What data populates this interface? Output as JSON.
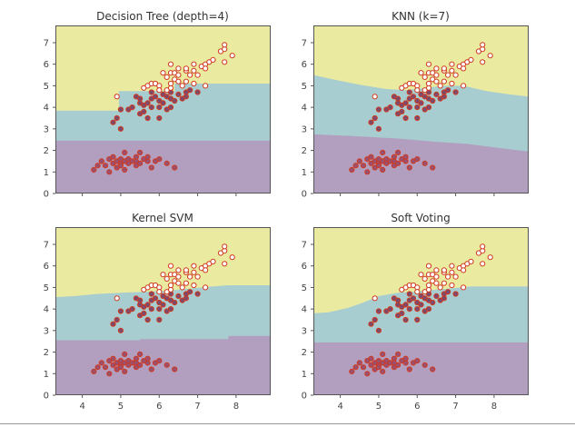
{
  "chart_data": [
    {
      "type": "scatter",
      "title": "Decision Tree (depth=4)",
      "xlim": [
        3.3,
        8.9
      ],
      "ylim": [
        0,
        7.8
      ],
      "xticks": [
        4,
        5,
        6,
        7,
        8
      ],
      "yticks": [
        0,
        1,
        2,
        3,
        4,
        5,
        6,
        7
      ],
      "show_x_tick_labels": false,
      "region_colors": [
        "#b29fc0",
        "#a8cdd0",
        "#eaeba0"
      ],
      "boundary_lower": [
        [
          3.3,
          2.45
        ],
        [
          8.9,
          2.45
        ]
      ],
      "boundary_upper": [
        [
          3.3,
          3.85
        ],
        [
          4.95,
          3.85
        ],
        [
          4.95,
          4.75
        ],
        [
          6.4,
          4.75
        ],
        [
          6.4,
          5.1
        ],
        [
          8.9,
          5.1
        ]
      ]
    },
    {
      "type": "scatter",
      "title": "KNN (k=7)",
      "xlim": [
        3.3,
        8.9
      ],
      "ylim": [
        0,
        7.8
      ],
      "xticks": [
        4,
        5,
        6,
        7,
        8
      ],
      "yticks": [
        0,
        1,
        2,
        3,
        4,
        5,
        6,
        7
      ],
      "show_x_tick_labels": false,
      "region_colors": [
        "#b29fc0",
        "#a8cdd0",
        "#eaeba0"
      ],
      "boundary_lower": [
        [
          3.3,
          2.75
        ],
        [
          4.5,
          2.65
        ],
        [
          5.5,
          2.55
        ],
        [
          6.5,
          2.4
        ],
        [
          7.3,
          2.3
        ],
        [
          8.2,
          2.1
        ],
        [
          8.9,
          1.95
        ]
      ],
      "boundary_upper": [
        [
          3.3,
          5.5
        ],
        [
          3.8,
          5.3
        ],
        [
          4.5,
          5.05
        ],
        [
          5.2,
          4.85
        ],
        [
          5.7,
          4.8
        ],
        [
          6.2,
          4.9
        ],
        [
          6.7,
          5.0
        ],
        [
          7.2,
          5.0
        ],
        [
          7.8,
          4.75
        ],
        [
          8.4,
          4.6
        ],
        [
          8.9,
          4.5
        ]
      ]
    },
    {
      "type": "scatter",
      "title": "Kernel SVM",
      "xlim": [
        3.3,
        8.9
      ],
      "ylim": [
        0,
        7.8
      ],
      "xticks": [
        4,
        5,
        6,
        7,
        8
      ],
      "yticks": [
        0,
        1,
        2,
        3,
        4,
        5,
        6,
        7
      ],
      "show_x_tick_labels": true,
      "region_colors": [
        "#b29fc0",
        "#a8cdd0",
        "#eaeba0"
      ],
      "boundary_lower": [
        [
          3.3,
          2.55
        ],
        [
          5.5,
          2.55
        ],
        [
          5.5,
          2.6
        ],
        [
          7.8,
          2.6
        ],
        [
          7.8,
          2.75
        ],
        [
          8.9,
          2.75
        ]
      ],
      "boundary_upper": [
        [
          3.3,
          4.55
        ],
        [
          3.8,
          4.6
        ],
        [
          4.4,
          4.7
        ],
        [
          5.0,
          4.75
        ],
        [
          5.6,
          4.8
        ],
        [
          6.2,
          4.85
        ],
        [
          6.8,
          4.95
        ],
        [
          7.4,
          5.05
        ],
        [
          7.8,
          5.1
        ],
        [
          8.9,
          5.1
        ]
      ]
    },
    {
      "type": "scatter",
      "title": "Soft Voting",
      "xlim": [
        3.3,
        8.9
      ],
      "ylim": [
        0,
        7.8
      ],
      "xticks": [
        4,
        5,
        6,
        7,
        8
      ],
      "yticks": [
        0,
        1,
        2,
        3,
        4,
        5,
        6,
        7
      ],
      "show_x_tick_labels": true,
      "region_colors": [
        "#b29fc0",
        "#a8cdd0",
        "#eaeba0"
      ],
      "boundary_lower": [
        [
          3.3,
          2.45
        ],
        [
          8.9,
          2.45
        ]
      ],
      "boundary_upper": [
        [
          3.3,
          3.8
        ],
        [
          3.7,
          3.85
        ],
        [
          4.2,
          4.05
        ],
        [
          4.6,
          4.3
        ],
        [
          5.0,
          4.6
        ],
        [
          5.5,
          4.75
        ],
        [
          6.2,
          4.85
        ],
        [
          6.8,
          4.95
        ],
        [
          7.4,
          5.05
        ],
        [
          8.9,
          5.05
        ]
      ]
    }
  ],
  "points": {
    "edge_color": "#d03a1e",
    "class_colors": [
      "#9b5072",
      "#7d4a6e",
      "#ffffff"
    ],
    "class0": [
      [
        4.3,
        1.1
      ],
      [
        4.4,
        1.3
      ],
      [
        4.5,
        1.5
      ],
      [
        4.6,
        1.3
      ],
      [
        4.7,
        1.0
      ],
      [
        4.7,
        1.6
      ],
      [
        4.8,
        1.4
      ],
      [
        4.8,
        1.7
      ],
      [
        4.9,
        1.5
      ],
      [
        4.9,
        1.2
      ],
      [
        5.0,
        1.4
      ],
      [
        5.0,
        1.6
      ],
      [
        5.0,
        1.3
      ],
      [
        5.1,
        1.5
      ],
      [
        5.1,
        1.9
      ],
      [
        5.1,
        1.1
      ],
      [
        5.2,
        1.4
      ],
      [
        5.2,
        1.6
      ],
      [
        5.3,
        1.5
      ],
      [
        5.4,
        1.3
      ],
      [
        5.4,
        1.7
      ],
      [
        5.4,
        1.5
      ],
      [
        5.5,
        1.4
      ],
      [
        5.5,
        1.9
      ],
      [
        5.6,
        1.6
      ],
      [
        5.7,
        1.5
      ],
      [
        5.7,
        1.7
      ],
      [
        5.8,
        1.2
      ],
      [
        5.9,
        1.5
      ],
      [
        6.0,
        1.6
      ],
      [
        6.2,
        1.4
      ],
      [
        6.4,
        1.2
      ]
    ],
    "class1": [
      [
        4.8,
        3.3
      ],
      [
        4.9,
        3.5
      ],
      [
        5.0,
        3.0
      ],
      [
        5.0,
        3.9
      ],
      [
        5.2,
        3.9
      ],
      [
        5.3,
        4.0
      ],
      [
        5.4,
        4.5
      ],
      [
        5.5,
        4.2
      ],
      [
        5.5,
        3.7
      ],
      [
        5.6,
        3.8
      ],
      [
        5.6,
        4.1
      ],
      [
        5.7,
        4.2
      ],
      [
        5.7,
        3.5
      ],
      [
        5.8,
        4.4
      ],
      [
        5.8,
        4.0
      ],
      [
        5.9,
        4.5
      ],
      [
        6.0,
        4.3
      ],
      [
        6.0,
        3.5
      ],
      [
        6.0,
        4.0
      ],
      [
        6.1,
        4.6
      ],
      [
        6.1,
        4.2
      ],
      [
        6.2,
        4.5
      ],
      [
        6.2,
        3.9
      ],
      [
        6.3,
        4.4
      ],
      [
        6.3,
        4.7
      ],
      [
        6.4,
        4.3
      ],
      [
        6.5,
        4.6
      ],
      [
        6.6,
        4.4
      ],
      [
        6.7,
        4.5
      ],
      [
        6.7,
        4.7
      ],
      [
        6.8,
        4.8
      ],
      [
        7.0,
        4.7
      ],
      [
        5.8,
        4.7
      ],
      [
        6.3,
        4.0
      ],
      [
        5.5,
        4.4
      ]
    ],
    "class2": [
      [
        4.9,
        4.5
      ],
      [
        5.6,
        4.9
      ],
      [
        5.7,
        5.0
      ],
      [
        5.8,
        5.1
      ],
      [
        5.9,
        5.1
      ],
      [
        6.0,
        5.0
      ],
      [
        6.0,
        4.8
      ],
      [
        6.1,
        5.6
      ],
      [
        6.2,
        5.4
      ],
      [
        6.2,
        4.8
      ],
      [
        6.3,
        5.6
      ],
      [
        6.3,
        6.0
      ],
      [
        6.3,
        4.9
      ],
      [
        6.3,
        5.1
      ],
      [
        6.4,
        5.3
      ],
      [
        6.4,
        5.6
      ],
      [
        6.5,
        5.2
      ],
      [
        6.5,
        5.5
      ],
      [
        6.5,
        5.8
      ],
      [
        6.6,
        5.0
      ],
      [
        6.7,
        5.7
      ],
      [
        6.7,
        5.8
      ],
      [
        6.7,
        5.2
      ],
      [
        6.8,
        5.5
      ],
      [
        6.9,
        5.1
      ],
      [
        6.9,
        5.7
      ],
      [
        6.9,
        6.0
      ],
      [
        7.1,
        5.9
      ],
      [
        7.2,
        6.0
      ],
      [
        7.2,
        5.8
      ],
      [
        7.3,
        6.1
      ],
      [
        7.4,
        6.2
      ],
      [
        7.6,
        6.6
      ],
      [
        7.7,
        6.7
      ],
      [
        7.7,
        6.9
      ],
      [
        7.7,
        6.1
      ],
      [
        7.9,
        6.4
      ],
      [
        7.2,
        5.0
      ],
      [
        7.0,
        5.5
      ]
    ]
  }
}
